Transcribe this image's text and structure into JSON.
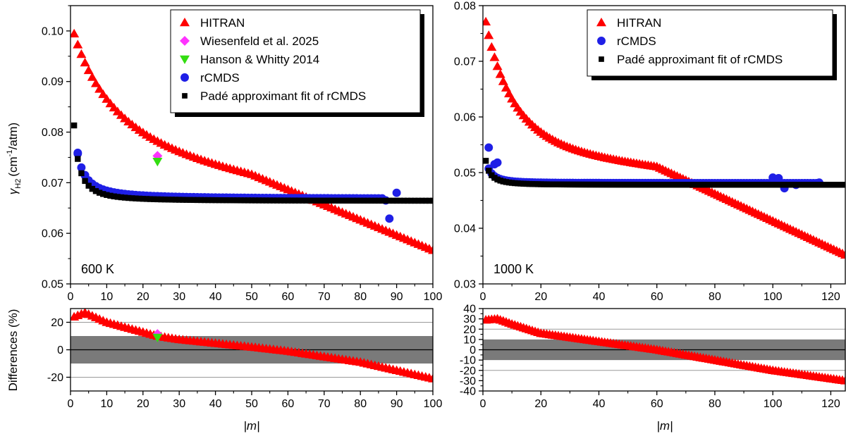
{
  "figure": {
    "ylabel_main": "γ",
    "ylabel_main_sub": "H2",
    "ylabel_main_unit": "(cm",
    "ylabel_main_sup": "-1",
    "ylabel_main_tail": "/atm)",
    "ylabel_diff": "Differences (%)",
    "xlabel": "|m|"
  },
  "colors": {
    "hitran": "#ff0000",
    "wiesenfeld": "#ff33ff",
    "hanson": "#33dd11",
    "rcmds": "#1f1fe6",
    "pade": "#000000",
    "band": "#7a7a7a"
  },
  "chart_data": [
    {
      "id": "left-main",
      "type": "scatter",
      "annotation": "600 K",
      "xlim": [
        0,
        100
      ],
      "ylim": [
        0.05,
        0.105
      ],
      "xticks": [
        "0",
        "10",
        "20",
        "30",
        "40",
        "50",
        "60",
        "70",
        "80",
        "90",
        "100"
      ],
      "yticks": [
        "0.05",
        "0.06",
        "0.07",
        "0.08",
        "0.09",
        "0.10"
      ],
      "legend_position": "top-right",
      "series": [
        {
          "name": "HITRAN",
          "marker": "triangle",
          "color": "#ff0000",
          "model": {
            "kind": "hitran",
            "a": 0.0755,
            "b": 0.0026,
            "c": 0.02,
            "d": 12,
            "e": 0.00016,
            "f": 0.0003,
            "g": 1.34e-05,
            "h": 2.7e-06,
            "m0": 50,
            "xmin": 1,
            "xmax": 100
          }
        },
        {
          "name": "Wiesenfeld et al. 2025",
          "marker": "diamond",
          "color": "#ff33ff",
          "points": [
            [
              24,
              0.0753
            ]
          ]
        },
        {
          "name": "Hanson & Whitty 2014",
          "marker": "triangle-down",
          "color": "#33dd11",
          "points": [
            [
              24,
              0.0742
            ]
          ]
        },
        {
          "name": "rCMDS",
          "marker": "circle",
          "color": "#1f1fe6",
          "model": {
            "kind": "pade",
            "a": 0.0668,
            "b": 0.0009,
            "c": 0.035,
            "d": 1.3,
            "xmin": 2,
            "xmax": 86,
            "step": 1
          },
          "points": [
            [
              2,
              0.0759
            ],
            [
              4,
              0.0715
            ],
            [
              87,
              0.0665
            ],
            [
              88,
              0.0629
            ],
            [
              90,
              0.068
            ]
          ]
        },
        {
          "name": "Padé approximant fit of rCMDS",
          "marker": "square",
          "color": "#000000",
          "model": {
            "kind": "pade",
            "a": 0.0664,
            "b": 0.001,
            "c": 0.04,
            "d": 1.5,
            "xmin": 1,
            "xmax": 100
          }
        }
      ]
    },
    {
      "id": "left-diff",
      "type": "scatter",
      "xlim": [
        0,
        100
      ],
      "ylim": [
        -30,
        30
      ],
      "xticks": [
        "0",
        "10",
        "20",
        "30",
        "40",
        "50",
        "60",
        "70",
        "80",
        "90",
        "100"
      ],
      "yticks": [
        "-20",
        "0",
        "20"
      ],
      "band": [
        -10,
        10
      ],
      "gridlines": [
        -20,
        20
      ],
      "series": [
        {
          "name": "HITRAN",
          "marker": "triangle",
          "color": "#ff0000",
          "model": {
            "kind": "diff",
            "p": [
              [
                1,
                24
              ],
              [
                4,
                27
              ],
              [
                10,
                20
              ],
              [
                24,
                10
              ],
              [
                30,
                7.5
              ],
              [
                50,
                2
              ],
              [
                60,
                -1
              ],
              [
                80,
                -9
              ],
              [
                100,
                -21
              ]
            ],
            "xmin": 1,
            "xmax": 100
          }
        },
        {
          "name": "Wiesenfeld et al. 2025",
          "marker": "diamond",
          "color": "#ff33ff",
          "points": [
            [
              24,
              11.5
            ]
          ]
        },
        {
          "name": "Hanson & Whitty 2014",
          "marker": "triangle-down",
          "color": "#33dd11",
          "points": [
            [
              24,
              9
            ]
          ]
        }
      ]
    },
    {
      "id": "right-main",
      "type": "scatter",
      "annotation": "1000 K",
      "xlim": [
        0,
        125
      ],
      "ylim": [
        0.03,
        0.08
      ],
      "xticks": [
        "0",
        "20",
        "40",
        "60",
        "80",
        "100",
        "120"
      ],
      "yticks": [
        "0.03",
        "0.04",
        "0.05",
        "0.06",
        "0.07",
        "0.08"
      ],
      "legend_position": "top-right",
      "series": [
        {
          "name": "HITRAN",
          "marker": "triangle",
          "color": "#ff0000",
          "model": {
            "kind": "hitran",
            "a": 0.0535,
            "b": 0.0033,
            "c": 0.0215,
            "d": 11,
            "e": 7e-05,
            "f": 0.000244,
            "g": 6.5e-06,
            "h": 1.8e-06,
            "m0": 60,
            "xmin": 1,
            "xmax": 125
          }
        },
        {
          "name": "rCMDS",
          "marker": "circle",
          "color": "#1f1fe6",
          "model": {
            "kind": "pade",
            "a": 0.0481,
            "b": 0.0009,
            "c": 0.012,
            "d": 1.6,
            "xmin": 2,
            "xmax": 116,
            "step": 1
          },
          "points": [
            [
              2,
              0.0545
            ],
            [
              4,
              0.0515
            ],
            [
              5,
              0.0518
            ],
            [
              100,
              0.0491
            ],
            [
              102,
              0.049
            ],
            [
              104,
              0.0472
            ],
            [
              108,
              0.0478
            ],
            [
              116,
              0.0482
            ]
          ]
        },
        {
          "name": "Padé approximant fit of rCMDS",
          "marker": "square",
          "color": "#000000",
          "model": {
            "kind": "pade",
            "a": 0.0478,
            "b": 0.001,
            "c": 0.01,
            "d": 1.5,
            "xmin": 1,
            "xmax": 125
          }
        }
      ]
    },
    {
      "id": "right-diff",
      "type": "scatter",
      "xlim": [
        0,
        125
      ],
      "ylim": [
        -40,
        40
      ],
      "xticks": [
        "0",
        "20",
        "40",
        "60",
        "80",
        "100",
        "120"
      ],
      "yticks": [
        "-40",
        "-30",
        "-20",
        "-10",
        "0",
        "10",
        "20",
        "30",
        "40"
      ],
      "band": [
        -10,
        10
      ],
      "gridlines": [
        -20,
        20
      ],
      "series": [
        {
          "name": "HITRAN",
          "marker": "triangle",
          "color": "#ff0000",
          "model": {
            "kind": "diff",
            "p": [
              [
                1,
                29
              ],
              [
                5,
                30
              ],
              [
                10,
                25
              ],
              [
                20,
                16
              ],
              [
                40,
                8
              ],
              [
                60,
                0
              ],
              [
                80,
                -10
              ],
              [
                100,
                -20
              ],
              [
                125,
                -30
              ]
            ],
            "xmin": 1,
            "xmax": 125
          }
        }
      ]
    }
  ]
}
